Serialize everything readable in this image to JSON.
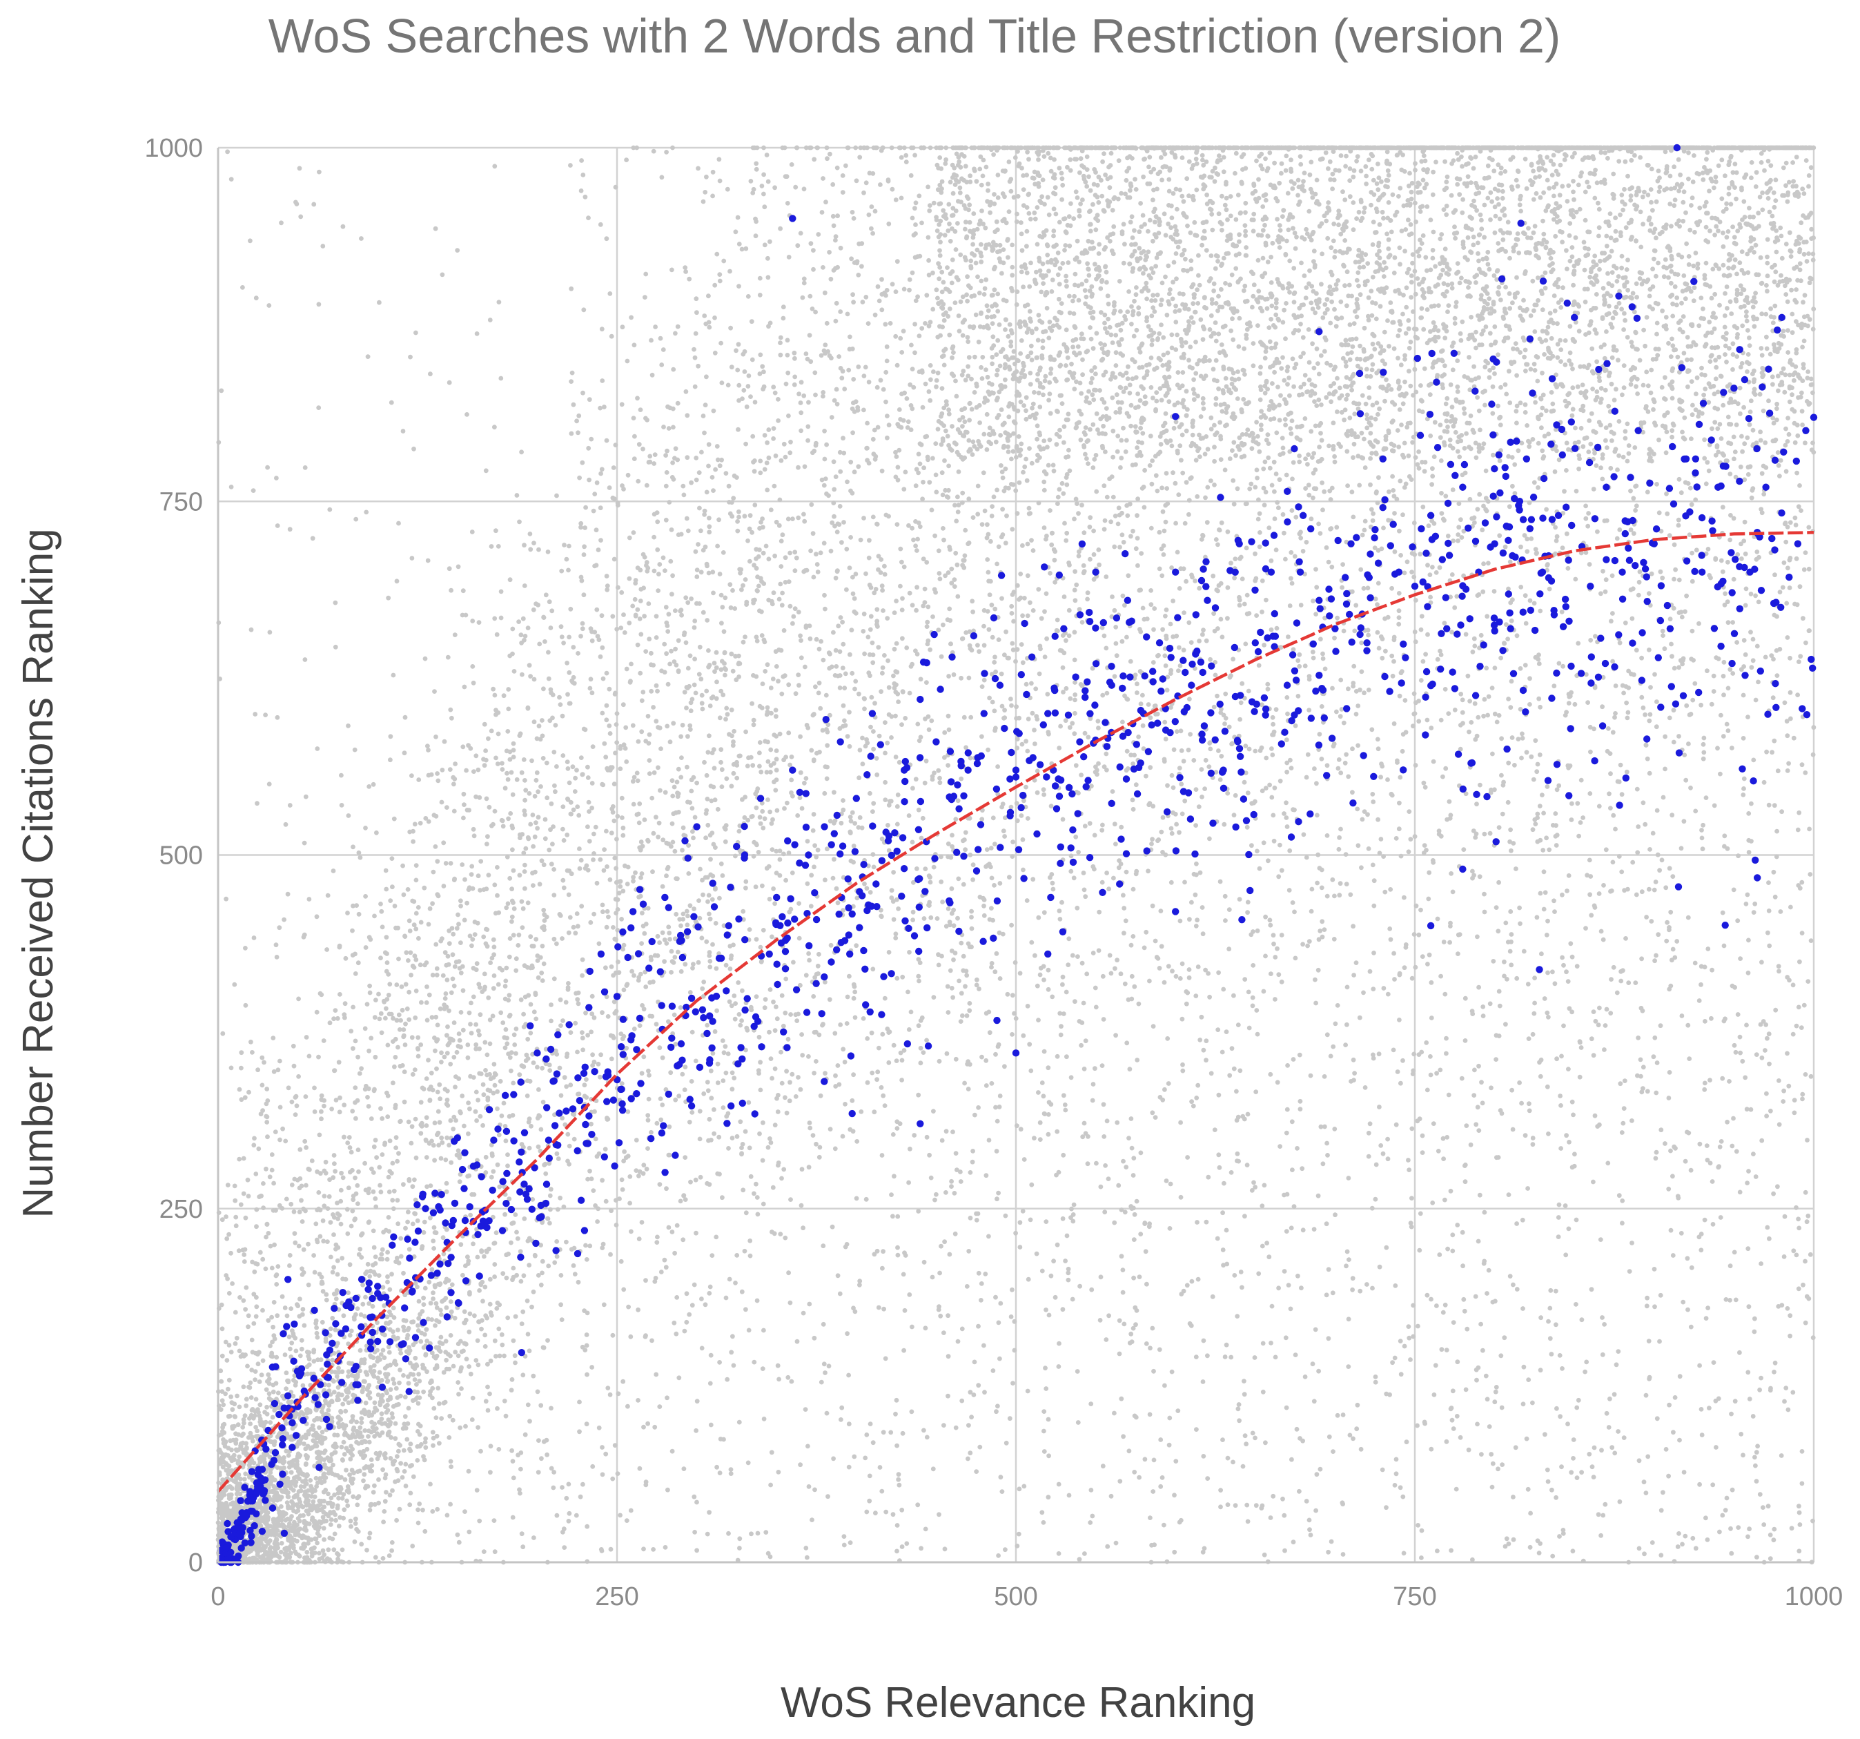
{
  "chart_data": {
    "type": "scatter",
    "title": "WoS Searches with 2 Words and Title Restriction (version 2)",
    "xlabel": "WoS Relevance Ranking",
    "ylabel": "Number Received Citations Ranking",
    "xlim": [
      0,
      1000
    ],
    "ylim": [
      0,
      1000
    ],
    "x_ticks": [
      "0",
      "250",
      "500",
      "750",
      "1000"
    ],
    "y_ticks": [
      "0",
      "250",
      "500",
      "750",
      "1000"
    ],
    "grid": true,
    "legend": "none",
    "series": [
      {
        "color": "#c8c8c8",
        "note_generated": "dense background scatter of several thousand points; a representative sample is drawn procedurally from the distribution shown",
        "values": [
          [
            5,
            20
          ],
          [
            12,
            45
          ],
          [
            20,
            70
          ],
          [
            25,
            30
          ],
          [
            35,
            110
          ],
          [
            40,
            60
          ],
          [
            55,
            90
          ],
          [
            60,
            150
          ],
          [
            75,
            40
          ],
          [
            80,
            200
          ],
          [
            95,
            120
          ],
          [
            110,
            250
          ],
          [
            120,
            80
          ],
          [
            140,
            300
          ],
          [
            150,
            180
          ],
          [
            160,
            420
          ],
          [
            180,
            260
          ],
          [
            200,
            350
          ],
          [
            210,
            520
          ],
          [
            230,
            150
          ],
          [
            250,
            600
          ],
          [
            270,
            300
          ],
          [
            290,
            450
          ],
          [
            310,
            700
          ],
          [
            330,
            220
          ],
          [
            350,
            560
          ],
          [
            370,
            820
          ],
          [
            390,
            380
          ],
          [
            410,
            650
          ],
          [
            430,
            900
          ],
          [
            450,
            260
          ],
          [
            470,
            720
          ],
          [
            490,
            480
          ],
          [
            510,
            850
          ],
          [
            530,
            330
          ],
          [
            550,
            950
          ],
          [
            570,
            610
          ],
          [
            590,
            420
          ],
          [
            610,
            880
          ],
          [
            630,
            210
          ],
          [
            650,
            760
          ],
          [
            670,
            520
          ],
          [
            690,
            960
          ],
          [
            710,
            340
          ],
          [
            730,
            830
          ],
          [
            750,
            600
          ],
          [
            770,
            150
          ],
          [
            790,
            920
          ],
          [
            810,
            460
          ],
          [
            830,
            990
          ],
          [
            850,
            280
          ],
          [
            870,
            870
          ],
          [
            890,
            520
          ],
          [
            910,
            980
          ],
          [
            930,
            90
          ],
          [
            950,
            780
          ],
          [
            970,
            380
          ],
          [
            985,
            940
          ],
          [
            995,
            650
          ],
          [
            60,
            960
          ]
        ]
      },
      {
        "color": "#1a1adc",
        "note_generated": "about 1,000 blue points clustered around the trend curve; a representative subset, with points between these generated along the curve",
        "values": [
          [
            2,
            3
          ],
          [
            5,
            10
          ],
          [
            8,
            18
          ],
          [
            12,
            28
          ],
          [
            15,
            35
          ],
          [
            20,
            50
          ],
          [
            25,
            62
          ],
          [
            30,
            80
          ],
          [
            35,
            72
          ],
          [
            40,
            95
          ],
          [
            50,
            110
          ],
          [
            60,
            130
          ],
          [
            70,
            150
          ],
          [
            80,
            165
          ],
          [
            90,
            200
          ],
          [
            100,
            190
          ],
          [
            110,
            230
          ],
          [
            120,
            215
          ],
          [
            130,
            250
          ],
          [
            140,
            260
          ],
          [
            150,
            300
          ],
          [
            160,
            280
          ],
          [
            170,
            320
          ],
          [
            180,
            330
          ],
          [
            190,
            290
          ],
          [
            200,
            360
          ],
          [
            210,
            340
          ],
          [
            220,
            380
          ],
          [
            230,
            350
          ],
          [
            240,
            430
          ],
          [
            250,
            400
          ],
          [
            260,
            460
          ],
          [
            270,
            420
          ],
          [
            280,
            470
          ],
          [
            290,
            440
          ],
          [
            300,
            520
          ],
          [
            310,
            480
          ],
          [
            320,
            450
          ],
          [
            330,
            500
          ],
          [
            340,
            540
          ],
          [
            350,
            470
          ],
          [
            360,
            560
          ],
          [
            370,
            500
          ],
          [
            380,
            520
          ],
          [
            390,
            580
          ],
          [
            400,
            540
          ],
          [
            410,
            600
          ],
          [
            420,
            510
          ],
          [
            430,
            560
          ],
          [
            440,
            610
          ],
          [
            450,
            580
          ],
          [
            460,
            640
          ],
          [
            470,
            560
          ],
          [
            480,
            600
          ],
          [
            490,
            620
          ],
          [
            500,
            560
          ],
          [
            510,
            640
          ],
          [
            520,
            600
          ],
          [
            530,
            660
          ],
          [
            540,
            580
          ],
          [
            550,
            700
          ],
          [
            560,
            620
          ],
          [
            570,
            680
          ],
          [
            580,
            600
          ],
          [
            590,
            650
          ],
          [
            600,
            700
          ],
          [
            610,
            620
          ],
          [
            620,
            680
          ],
          [
            630,
            560
          ],
          [
            640,
            720
          ],
          [
            650,
            650
          ],
          [
            660,
            700
          ],
          [
            670,
            620
          ],
          [
            680,
            740
          ],
          [
            690,
            680
          ],
          [
            700,
            660
          ],
          [
            710,
            720
          ],
          [
            720,
            650
          ],
          [
            730,
            780
          ],
          [
            740,
            700
          ],
          [
            750,
            690
          ],
          [
            760,
            740
          ],
          [
            770,
            660
          ],
          [
            780,
            760
          ],
          [
            790,
            700
          ],
          [
            800,
            720
          ],
          [
            810,
            660
          ],
          [
            820,
            780
          ],
          [
            830,
            700
          ],
          [
            840,
            740
          ],
          [
            850,
            880
          ],
          [
            860,
            690
          ],
          [
            870,
            760
          ],
          [
            880,
            700
          ],
          [
            890,
            800
          ],
          [
            900,
            720
          ],
          [
            910,
            660
          ],
          [
            920,
            780
          ],
          [
            930,
            700
          ],
          [
            940,
            760
          ],
          [
            950,
            830
          ],
          [
            960,
            700
          ],
          [
            970,
            760
          ],
          [
            980,
            880
          ],
          [
            990,
            720
          ],
          [
            995,
            800
          ],
          [
            360,
            950
          ],
          [
            520,
            430
          ],
          [
            600,
            460
          ],
          [
            440,
            310
          ],
          [
            500,
            360
          ],
          [
            760,
            450
          ],
          [
            780,
            490
          ],
          [
            690,
            870
          ],
          [
            600,
            810
          ]
        ]
      }
    ],
    "trendline": {
      "color": "#e53935",
      "style": "dashed",
      "values": [
        [
          0,
          50
        ],
        [
          50,
          113
        ],
        [
          100,
          173
        ],
        [
          150,
          230
        ],
        [
          200,
          285
        ],
        [
          250,
          345
        ],
        [
          300,
          397
        ],
        [
          350,
          440
        ],
        [
          400,
          480
        ],
        [
          450,
          515
        ],
        [
          500,
          548
        ],
        [
          550,
          580
        ],
        [
          600,
          610
        ],
        [
          650,
          638
        ],
        [
          700,
          663
        ],
        [
          750,
          684
        ],
        [
          800,
          702
        ],
        [
          850,
          715
        ],
        [
          900,
          723
        ],
        [
          950,
          727
        ],
        [
          1000,
          728
        ]
      ]
    }
  }
}
